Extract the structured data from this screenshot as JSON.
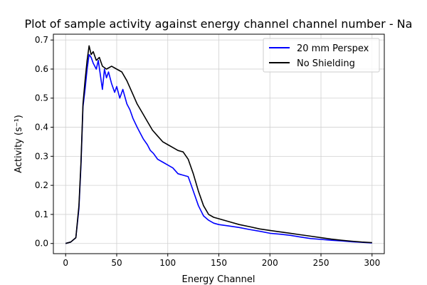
{
  "chart_data": {
    "type": "line",
    "title": "Plot of sample activity against energy channel channel number - Na",
    "xlabel": "Energy Channel",
    "ylabel": "Activity (s⁻¹)",
    "xlim": [
      -12,
      312
    ],
    "ylim": [
      -0.035,
      0.72
    ],
    "xticks": [
      0,
      50,
      100,
      150,
      200,
      250,
      300
    ],
    "yticks": [
      0.0,
      0.1,
      0.2,
      0.3,
      0.4,
      0.5,
      0.6,
      0.7
    ],
    "xtick_labels": [
      "0",
      "50",
      "100",
      "150",
      "200",
      "250",
      "300"
    ],
    "ytick_labels": [
      "0.0",
      "0.1",
      "0.2",
      "0.3",
      "0.4",
      "0.5",
      "0.6",
      "0.7"
    ],
    "grid": true,
    "legend_position": "top-right",
    "series": [
      {
        "name": "20 mm Perspex",
        "color": "#0000ff",
        "points": [
          [
            0,
            0.0
          ],
          [
            5,
            0.005
          ],
          [
            10,
            0.02
          ],
          [
            13,
            0.12
          ],
          [
            15,
            0.27
          ],
          [
            17,
            0.47
          ],
          [
            19,
            0.53
          ],
          [
            21,
            0.6
          ],
          [
            23,
            0.65
          ],
          [
            25,
            0.64
          ],
          [
            27,
            0.62
          ],
          [
            30,
            0.6
          ],
          [
            32,
            0.63
          ],
          [
            34,
            0.58
          ],
          [
            36,
            0.53
          ],
          [
            38,
            0.6
          ],
          [
            40,
            0.57
          ],
          [
            42,
            0.59
          ],
          [
            45,
            0.55
          ],
          [
            48,
            0.52
          ],
          [
            50,
            0.54
          ],
          [
            53,
            0.5
          ],
          [
            56,
            0.53
          ],
          [
            60,
            0.48
          ],
          [
            63,
            0.46
          ],
          [
            66,
            0.43
          ],
          [
            70,
            0.4
          ],
          [
            73,
            0.38
          ],
          [
            76,
            0.36
          ],
          [
            80,
            0.34
          ],
          [
            83,
            0.32
          ],
          [
            86,
            0.31
          ],
          [
            90,
            0.29
          ],
          [
            95,
            0.28
          ],
          [
            100,
            0.27
          ],
          [
            105,
            0.26
          ],
          [
            110,
            0.24
          ],
          [
            115,
            0.235
          ],
          [
            120,
            0.23
          ],
          [
            123,
            0.2
          ],
          [
            126,
            0.17
          ],
          [
            130,
            0.13
          ],
          [
            135,
            0.095
          ],
          [
            140,
            0.08
          ],
          [
            145,
            0.07
          ],
          [
            150,
            0.065
          ],
          [
            160,
            0.06
          ],
          [
            170,
            0.055
          ],
          [
            180,
            0.048
          ],
          [
            190,
            0.042
          ],
          [
            200,
            0.035
          ],
          [
            210,
            0.032
          ],
          [
            220,
            0.028
          ],
          [
            230,
            0.022
          ],
          [
            240,
            0.017
          ],
          [
            250,
            0.014
          ],
          [
            260,
            0.011
          ],
          [
            270,
            0.009
          ],
          [
            280,
            0.006
          ],
          [
            290,
            0.004
          ],
          [
            300,
            0.002
          ]
        ]
      },
      {
        "name": "No Shielding",
        "color": "#000000",
        "points": [
          [
            0,
            0.0
          ],
          [
            5,
            0.005
          ],
          [
            10,
            0.02
          ],
          [
            13,
            0.13
          ],
          [
            15,
            0.28
          ],
          [
            17,
            0.48
          ],
          [
            19,
            0.56
          ],
          [
            21,
            0.63
          ],
          [
            23,
            0.68
          ],
          [
            25,
            0.65
          ],
          [
            27,
            0.66
          ],
          [
            30,
            0.63
          ],
          [
            33,
            0.64
          ],
          [
            36,
            0.61
          ],
          [
            40,
            0.6
          ],
          [
            45,
            0.61
          ],
          [
            50,
            0.6
          ],
          [
            55,
            0.59
          ],
          [
            60,
            0.56
          ],
          [
            65,
            0.52
          ],
          [
            70,
            0.48
          ],
          [
            75,
            0.45
          ],
          [
            80,
            0.42
          ],
          [
            85,
            0.39
          ],
          [
            90,
            0.37
          ],
          [
            95,
            0.35
          ],
          [
            100,
            0.34
          ],
          [
            105,
            0.33
          ],
          [
            110,
            0.32
          ],
          [
            115,
            0.315
          ],
          [
            120,
            0.29
          ],
          [
            125,
            0.24
          ],
          [
            130,
            0.18
          ],
          [
            135,
            0.13
          ],
          [
            140,
            0.1
          ],
          [
            145,
            0.09
          ],
          [
            150,
            0.085
          ],
          [
            160,
            0.075
          ],
          [
            170,
            0.065
          ],
          [
            180,
            0.058
          ],
          [
            190,
            0.05
          ],
          [
            200,
            0.045
          ],
          [
            210,
            0.04
          ],
          [
            220,
            0.035
          ],
          [
            230,
            0.03
          ],
          [
            240,
            0.025
          ],
          [
            250,
            0.02
          ],
          [
            260,
            0.015
          ],
          [
            270,
            0.011
          ],
          [
            280,
            0.008
          ],
          [
            290,
            0.005
          ],
          [
            300,
            0.003
          ]
        ]
      }
    ]
  }
}
